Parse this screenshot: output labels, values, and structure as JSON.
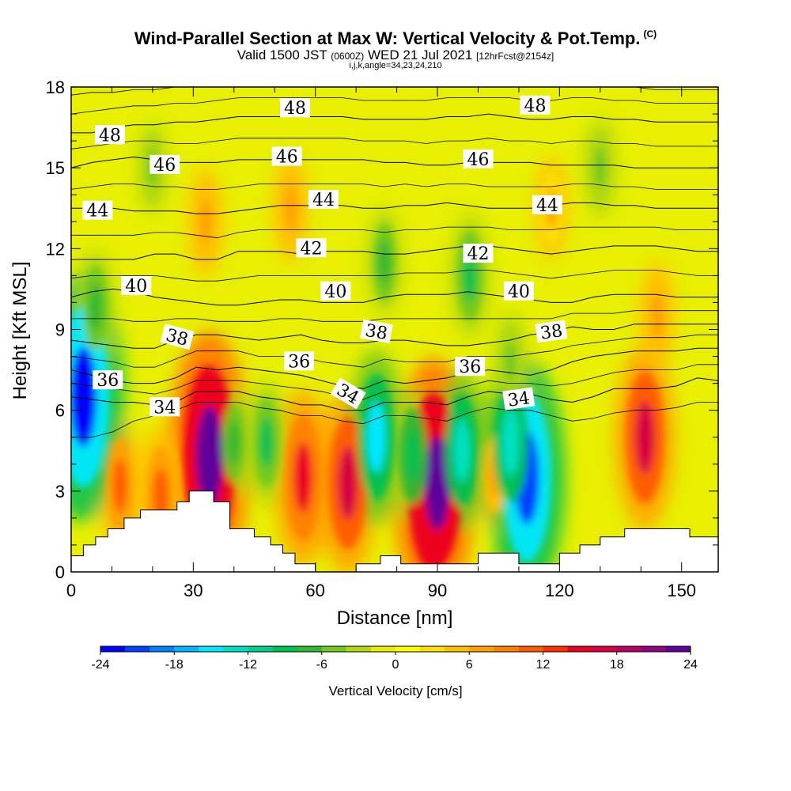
{
  "header": {
    "title": "Wind-Parallel Section at Max W: Vertical Velocity & Pot.Temp.",
    "title_mark": "(C)",
    "valid_prefix": "Valid 1500 JST",
    "utc": "(0600Z)",
    "valid_date": "WED 21 Jul 2021",
    "forecast": "[12hrFcst@2154z]",
    "indices": "i,j,k,angle=34,23,24,210"
  },
  "chart_data": {
    "type": "heatmap",
    "xlabel": "Distance [nm]",
    "ylabel": "Height [Kft MSL]",
    "xlim": [
      0,
      159
    ],
    "ylim": [
      0,
      18
    ],
    "x_ticks": [
      0,
      30,
      60,
      90,
      120,
      150
    ],
    "y_ticks": [
      0,
      3,
      6,
      9,
      12,
      15,
      18
    ],
    "colorbar": {
      "title": "Vertical Velocity [cm/s]",
      "ticks": [
        -24,
        -18,
        -12,
        -6,
        0,
        6,
        12,
        18,
        24
      ],
      "colors": [
        "#0000ff",
        "#0040ff",
        "#0080ff",
        "#00b4ff",
        "#00e8ff",
        "#00e0c0",
        "#00d08a",
        "#00c050",
        "#30b830",
        "#70c820",
        "#b0d810",
        "#e8f000",
        "#ffff00",
        "#ffe000",
        "#ffc000",
        "#ffa000",
        "#ff8000",
        "#ff5a00",
        "#ff3000",
        "#ee0020",
        "#d80040",
        "#b80060",
        "#900080",
        "#60009a"
      ]
    },
    "terrain_kft": [
      [
        0,
        0.6
      ],
      [
        3,
        0.6
      ],
      [
        3,
        1.0
      ],
      [
        6,
        1.0
      ],
      [
        6,
        1.3
      ],
      [
        9,
        1.3
      ],
      [
        9,
        1.6
      ],
      [
        13,
        1.6
      ],
      [
        13,
        2.0
      ],
      [
        17,
        2.0
      ],
      [
        17,
        2.3
      ],
      [
        26,
        2.3
      ],
      [
        26,
        2.6
      ],
      [
        29,
        2.6
      ],
      [
        29,
        3.0
      ],
      [
        35,
        3.0
      ],
      [
        35,
        2.6
      ],
      [
        39,
        2.6
      ],
      [
        39,
        1.6
      ],
      [
        45,
        1.6
      ],
      [
        45,
        1.3
      ],
      [
        49,
        1.3
      ],
      [
        49,
        1.0
      ],
      [
        52,
        1.0
      ],
      [
        52,
        0.7
      ],
      [
        55,
        0.7
      ],
      [
        55,
        0.3
      ],
      [
        60,
        0.3
      ],
      [
        60,
        0.0
      ],
      [
        70,
        0.0
      ],
      [
        70,
        0.3
      ],
      [
        76,
        0.3
      ],
      [
        76,
        0.6
      ],
      [
        81,
        0.6
      ],
      [
        81,
        0.3
      ],
      [
        100,
        0.3
      ],
      [
        100,
        0.7
      ],
      [
        110,
        0.7
      ],
      [
        110,
        0.3
      ],
      [
        120,
        0.3
      ],
      [
        120,
        0.7
      ],
      [
        125,
        0.7
      ],
      [
        125,
        1.0
      ],
      [
        130,
        1.0
      ],
      [
        130,
        1.3
      ],
      [
        136,
        1.3
      ],
      [
        136,
        1.6
      ],
      [
        152,
        1.6
      ],
      [
        152,
        1.3
      ],
      [
        159,
        1.3
      ]
    ],
    "updraft_cores": [
      {
        "x": 33,
        "y": 4.7,
        "w": 20
      },
      {
        "x": 34,
        "y": 4.3,
        "w": 24
      },
      {
        "x": 57,
        "y": 3.5,
        "w": 15
      },
      {
        "x": 68,
        "y": 3.3,
        "w": 16
      },
      {
        "x": 89,
        "y": 3.3,
        "w": 24
      },
      {
        "x": 90,
        "y": 3.3,
        "w": 22
      },
      {
        "x": 141,
        "y": 5.0,
        "w": 16
      },
      {
        "x": 22,
        "y": 2.8,
        "w": 11
      },
      {
        "x": 12,
        "y": 3.2,
        "w": 10
      },
      {
        "x": 104,
        "y": 3.6,
        "w": 7
      },
      {
        "x": 54,
        "y": 13.5,
        "w": 7
      },
      {
        "x": 33,
        "y": 13.0,
        "w": 7
      },
      {
        "x": 118,
        "y": 13.5,
        "w": 6
      },
      {
        "x": 144,
        "y": 9.5,
        "w": 7
      }
    ],
    "downdraft_cores": [
      {
        "x": 3,
        "y": 6.5,
        "w": -24
      },
      {
        "x": 112,
        "y": 3.5,
        "w": -22
      },
      {
        "x": 75,
        "y": 5.0,
        "w": -15
      },
      {
        "x": 96,
        "y": 4.5,
        "w": -13
      },
      {
        "x": 84,
        "y": 4.3,
        "w": -10
      },
      {
        "x": 108,
        "y": 4.8,
        "w": -14
      },
      {
        "x": 48,
        "y": 4.8,
        "w": -9
      },
      {
        "x": 40,
        "y": 4.8,
        "w": -7
      },
      {
        "x": 6,
        "y": 9.8,
        "w": -8
      },
      {
        "x": 98,
        "y": 11.0,
        "w": -9
      },
      {
        "x": 77,
        "y": 11.5,
        "w": -7
      },
      {
        "x": 130,
        "y": 15.0,
        "w": -6
      },
      {
        "x": 20,
        "y": 15.0,
        "w": -5
      },
      {
        "x": 108,
        "y": 7.8,
        "w": -6
      }
    ],
    "theta_contours": [
      {
        "level": 34,
        "y": [
          6.5,
          6.4,
          6.3,
          6.3,
          6.2,
          6.3,
          6.7,
          6.7,
          6.7,
          6.5,
          6.4,
          6.2,
          6.2,
          6.0,
          6.0,
          6.3,
          6.3,
          6.3,
          6.2,
          6.5,
          6.7,
          6.6,
          6.6,
          6.4,
          6.3,
          6.5,
          6.8,
          6.8,
          6.8,
          6.9,
          7.2,
          7.1
        ]
      },
      {
        "level": 36,
        "y": [
          7.5,
          7.3,
          7.1,
          7.0,
          7.0,
          7.2,
          7.6,
          7.5,
          7.6,
          7.5,
          7.4,
          7.3,
          7.1,
          6.9,
          6.8,
          7.1,
          7.0,
          7.1,
          7.2,
          7.4,
          7.5,
          7.4,
          7.3,
          7.5,
          7.8,
          8.0,
          8.1,
          8.2,
          8.2,
          8.2,
          8.3,
          8.3
        ]
      },
      {
        "level": 38,
        "y": [
          8.6,
          8.5,
          8.4,
          8.3,
          8.3,
          8.6,
          8.8,
          8.8,
          8.7,
          8.6,
          8.7,
          8.8,
          8.6,
          8.5,
          8.5,
          8.6,
          8.6,
          8.5,
          8.4,
          8.4,
          8.5,
          8.6,
          8.8,
          8.9,
          9.1,
          9.0,
          9.0,
          9.2,
          9.2,
          9.2,
          9.2,
          9.2
        ]
      },
      {
        "level": 40,
        "y": [
          10.2,
          10.4,
          10.5,
          10.4,
          10.2,
          10.1,
          10.0,
          9.9,
          9.9,
          10.0,
          10.1,
          10.1,
          10.0,
          10.0,
          10.0,
          10.2,
          10.3,
          10.3,
          10.3,
          10.4,
          10.3,
          10.2,
          10.1,
          10.0,
          10.0,
          10.2,
          10.3,
          10.3,
          10.3,
          10.2,
          10.2,
          10.2
        ]
      },
      {
        "level": 42,
        "y": [
          11.6,
          11.6,
          11.6,
          11.6,
          11.8,
          11.8,
          11.6,
          11.6,
          11.9,
          11.9,
          11.9,
          11.8,
          11.9,
          11.9,
          11.9,
          11.8,
          11.8,
          11.9,
          12.0,
          12.1,
          12.1,
          12.0,
          11.9,
          11.8,
          11.9,
          12.0,
          12.1,
          12.1,
          12.1,
          12.0,
          11.9,
          11.9
        ]
      },
      {
        "level": 44,
        "y": [
          13.5,
          13.5,
          13.5,
          13.4,
          13.4,
          13.4,
          13.3,
          13.3,
          13.4,
          13.5,
          13.6,
          13.6,
          13.6,
          13.6,
          13.5,
          13.5,
          13.6,
          13.6,
          13.7,
          13.6,
          13.5,
          13.5,
          13.5,
          13.6,
          13.7,
          13.7,
          13.6,
          13.6,
          13.5,
          13.5,
          13.5,
          13.5
        ]
      },
      {
        "level": 46,
        "y": [
          15.0,
          15.2,
          15.3,
          15.4,
          15.3,
          15.2,
          15.2,
          15.2,
          15.3,
          15.3,
          15.3,
          15.3,
          15.3,
          15.3,
          15.3,
          15.2,
          15.2,
          15.1,
          15.1,
          15.2,
          15.2,
          15.2,
          15.2,
          15.1,
          15.1,
          15.1,
          15.1,
          15.0,
          15.0,
          15.0,
          15.0,
          15.0
        ]
      },
      {
        "level": 48,
        "y": [
          16.3,
          16.3,
          16.5,
          16.6,
          16.6,
          16.7,
          16.7,
          16.8,
          16.9,
          16.9,
          16.9,
          16.9,
          16.9,
          16.9,
          16.8,
          16.8,
          16.8,
          16.8,
          16.9,
          16.9,
          17.0,
          16.9,
          16.8,
          16.8,
          16.9,
          16.9,
          16.8,
          16.8,
          16.7,
          16.7,
          16.7,
          16.7
        ]
      }
    ],
    "theta_minor_contours": [
      {
        "y": [
          5.0,
          5.0,
          5.2,
          5.6,
          5.8,
          6.0,
          6.3,
          6.3,
          6.3,
          6.1,
          6.0,
          5.8,
          5.8,
          5.6,
          5.5,
          5.8,
          5.8,
          5.7,
          5.6,
          5.9,
          6.1,
          6.0,
          6.0,
          5.8,
          5.6,
          5.7,
          5.9,
          6.0,
          6.0,
          6.1,
          6.3,
          6.3
        ]
      },
      {
        "y": [
          7.0,
          6.9,
          6.8,
          6.7,
          6.6,
          6.8,
          7.1,
          7.1,
          7.1,
          7.0,
          6.9,
          6.8,
          6.7,
          6.5,
          6.4,
          6.7,
          6.7,
          6.7,
          6.7,
          6.9,
          7.1,
          7.0,
          7.0,
          6.9,
          7.0,
          7.2,
          7.4,
          7.5,
          7.5,
          7.5,
          7.7,
          7.7
        ]
      },
      {
        "y": [
          8.0,
          7.9,
          7.8,
          7.6,
          7.6,
          7.9,
          8.2,
          8.2,
          8.2,
          8.0,
          8.0,
          8.0,
          7.8,
          7.7,
          7.6,
          7.9,
          7.8,
          7.8,
          7.8,
          8.0,
          8.0,
          8.0,
          8.1,
          8.2,
          8.4,
          8.5,
          8.6,
          8.7,
          8.7,
          8.7,
          8.8,
          8.8
        ]
      },
      {
        "y": [
          9.4,
          9.4,
          9.4,
          9.3,
          9.3,
          9.4,
          9.4,
          9.3,
          9.3,
          9.3,
          9.4,
          9.4,
          9.3,
          9.3,
          9.3,
          9.4,
          9.4,
          9.4,
          9.4,
          9.4,
          9.4,
          9.4,
          9.4,
          9.4,
          9.6,
          9.6,
          9.6,
          9.7,
          9.7,
          9.7,
          9.7,
          9.7
        ]
      },
      {
        "y": [
          10.9,
          11.0,
          11.0,
          11.0,
          11.0,
          10.9,
          10.8,
          10.8,
          10.9,
          11.0,
          11.0,
          11.0,
          11.0,
          11.0,
          11.0,
          11.0,
          11.1,
          11.1,
          11.1,
          11.2,
          11.2,
          11.1,
          11.0,
          10.9,
          11.0,
          11.1,
          11.2,
          11.2,
          11.2,
          11.1,
          11.0,
          11.0
        ]
      },
      {
        "y": [
          12.5,
          12.5,
          12.5,
          12.5,
          12.6,
          12.6,
          12.5,
          12.4,
          12.6,
          12.7,
          12.7,
          12.7,
          12.7,
          12.7,
          12.7,
          12.6,
          12.7,
          12.7,
          12.8,
          12.8,
          12.8,
          12.7,
          12.7,
          12.7,
          12.8,
          12.8,
          12.8,
          12.8,
          12.8,
          12.7,
          12.7,
          12.7
        ]
      },
      {
        "y": [
          14.2,
          14.3,
          14.4,
          14.4,
          14.3,
          14.3,
          14.2,
          14.2,
          14.3,
          14.4,
          14.4,
          14.4,
          14.4,
          14.4,
          14.4,
          14.3,
          14.4,
          14.3,
          14.4,
          14.4,
          14.3,
          14.3,
          14.3,
          14.3,
          14.4,
          14.4,
          14.3,
          14.3,
          14.2,
          14.2,
          14.2,
          14.2
        ]
      },
      {
        "y": [
          15.7,
          15.8,
          15.9,
          16.0,
          16.0,
          15.9,
          15.9,
          16.0,
          16.1,
          16.1,
          16.1,
          16.1,
          16.1,
          16.1,
          16.0,
          16.0,
          16.0,
          15.9,
          16.0,
          16.0,
          16.1,
          16.0,
          16.0,
          15.9,
          16.0,
          16.0,
          15.9,
          15.9,
          15.8,
          15.8,
          15.8,
          15.8
        ]
      },
      {
        "y": [
          17.0,
          17.1,
          17.2,
          17.3,
          17.3,
          17.4,
          17.4,
          17.5,
          17.6,
          17.6,
          17.6,
          17.6,
          17.6,
          17.6,
          17.5,
          17.5,
          17.5,
          17.5,
          17.6,
          17.6,
          17.6,
          17.6,
          17.5,
          17.5,
          17.6,
          17.6,
          17.5,
          17.5,
          17.4,
          17.4,
          17.4,
          17.4
        ]
      },
      {
        "y": [
          17.7,
          17.8,
          17.8,
          17.9,
          17.9,
          18.0,
          18.0,
          18.0,
          18.0,
          18.0,
          18.0,
          18.0,
          18.0,
          18.0,
          18.0,
          18.0,
          18.0,
          18.0,
          18.0,
          18.0,
          18.0,
          18.0,
          18.0,
          18.0,
          18.0,
          18.0,
          18.0,
          18.0,
          17.9,
          17.9,
          17.9,
          17.9
        ]
      }
    ],
    "contour_labels": [
      {
        "level": "48",
        "x": 9.5,
        "y": 16.2,
        "rot": 0
      },
      {
        "level": "48",
        "x": 55,
        "y": 17.2,
        "rot": 0
      },
      {
        "level": "48",
        "x": 114,
        "y": 17.3,
        "rot": 0
      },
      {
        "level": "46",
        "x": 23,
        "y": 15.1,
        "rot": 0
      },
      {
        "level": "46",
        "x": 53,
        "y": 15.4,
        "rot": 0
      },
      {
        "level": "46",
        "x": 100,
        "y": 15.3,
        "rot": 0
      },
      {
        "level": "44",
        "x": 6.5,
        "y": 13.4,
        "rot": 0
      },
      {
        "level": "44",
        "x": 62,
        "y": 13.8,
        "rot": 0
      },
      {
        "level": "44",
        "x": 117,
        "y": 13.6,
        "rot": 0
      },
      {
        "level": "42",
        "x": 59,
        "y": 12.0,
        "rot": 0
      },
      {
        "level": "42",
        "x": 100,
        "y": 11.8,
        "rot": 0
      },
      {
        "level": "40",
        "x": 16,
        "y": 10.6,
        "rot": 0
      },
      {
        "level": "40",
        "x": 65,
        "y": 10.4,
        "rot": 0
      },
      {
        "level": "40",
        "x": 110,
        "y": 10.4,
        "rot": 0
      },
      {
        "level": "38",
        "x": 26,
        "y": 8.7,
        "rot": 15
      },
      {
        "level": "38",
        "x": 75,
        "y": 8.9,
        "rot": 10
      },
      {
        "level": "38",
        "x": 118,
        "y": 8.9,
        "rot": -8
      },
      {
        "level": "36",
        "x": 9,
        "y": 7.1,
        "rot": 0
      },
      {
        "level": "36",
        "x": 56,
        "y": 7.8,
        "rot": 0
      },
      {
        "level": "36",
        "x": 98,
        "y": 7.6,
        "rot": 0
      },
      {
        "level": "34",
        "x": 23,
        "y": 6.1,
        "rot": 0
      },
      {
        "level": "34",
        "x": 68,
        "y": 6.6,
        "rot": 30
      },
      {
        "level": "34",
        "x": 110,
        "y": 6.4,
        "rot": -8
      }
    ]
  }
}
